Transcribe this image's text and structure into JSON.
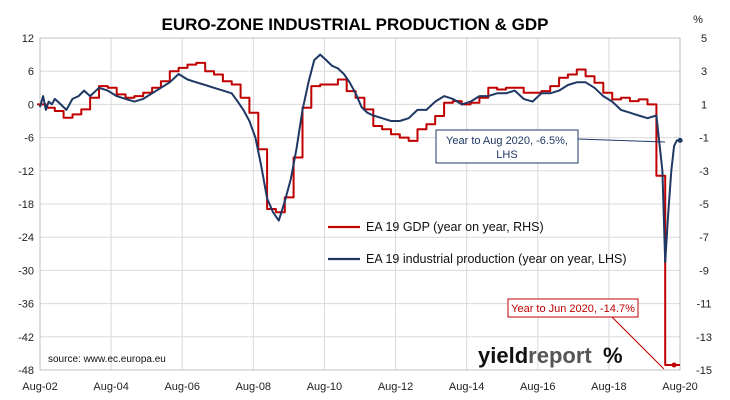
{
  "chart_data": {
    "type": "line",
    "title": "EURO-ZONE INDUSTRIAL PRODUCTION & GDP",
    "right_axis_unit": "%",
    "x_tick_labels": [
      "Aug-02",
      "Aug-04",
      "Aug-06",
      "Aug-08",
      "Aug-10",
      "Aug-12",
      "Aug-14",
      "Aug-16",
      "Aug-18",
      "Aug-20"
    ],
    "x_range": [
      2002.583,
      2020.667
    ],
    "left_axis": {
      "ylim": [
        -48,
        12
      ],
      "ticks": [
        12,
        6,
        0,
        -6,
        -12,
        -18,
        -24,
        -30,
        -36,
        -42,
        -48
      ]
    },
    "right_axis": {
      "ylim": [
        -15,
        5
      ],
      "ticks": [
        5,
        3,
        1,
        -1,
        -3,
        -5,
        -7,
        -9,
        -11,
        -13,
        -15
      ]
    },
    "grid": true,
    "legend_position": "center",
    "series": [
      {
        "name": "EA 19 GDP (year on year, RHS)",
        "axis": "right",
        "color": "#c00000",
        "step": true,
        "x": [
          2002.5,
          2002.75,
          2003.0,
          2003.25,
          2003.5,
          2003.75,
          2004.0,
          2004.25,
          2004.5,
          2004.75,
          2005.0,
          2005.25,
          2005.5,
          2005.75,
          2006.0,
          2006.25,
          2006.5,
          2006.75,
          2007.0,
          2007.25,
          2007.5,
          2007.75,
          2008.0,
          2008.25,
          2008.5,
          2008.75,
          2009.0,
          2009.25,
          2009.5,
          2009.75,
          2010.0,
          2010.25,
          2010.5,
          2010.75,
          2011.0,
          2011.25,
          2011.5,
          2011.75,
          2012.0,
          2012.25,
          2012.5,
          2012.75,
          2013.0,
          2013.25,
          2013.5,
          2013.75,
          2014.0,
          2014.25,
          2014.5,
          2014.75,
          2015.0,
          2015.25,
          2015.5,
          2015.75,
          2016.0,
          2016.25,
          2016.5,
          2016.75,
          2017.0,
          2017.25,
          2017.5,
          2017.75,
          2018.0,
          2018.25,
          2018.5,
          2018.75,
          2019.0,
          2019.25,
          2019.5,
          2019.75,
          2020.0,
          2020.25,
          2020.5
        ],
        "values": [
          1.0,
          0.8,
          0.6,
          0.2,
          0.4,
          0.7,
          1.4,
          2.1,
          2.0,
          1.6,
          1.4,
          1.5,
          1.7,
          2.0,
          2.4,
          3.0,
          3.2,
          3.4,
          3.5,
          3.0,
          2.8,
          2.4,
          2.2,
          1.4,
          0.5,
          -1.7,
          -5.3,
          -5.5,
          -4.6,
          -2.2,
          0.8,
          2.1,
          2.2,
          2.2,
          2.5,
          1.8,
          1.4,
          0.7,
          -0.3,
          -0.5,
          -0.8,
          -1.0,
          -1.2,
          -0.5,
          -0.2,
          0.3,
          1.1,
          1.2,
          1.0,
          1.1,
          1.4,
          2.0,
          1.9,
          2.0,
          2.0,
          1.7,
          1.7,
          1.8,
          2.1,
          2.6,
          2.8,
          3.1,
          2.7,
          2.3,
          1.7,
          1.3,
          1.4,
          1.2,
          1.3,
          1.0,
          -3.3,
          -14.7,
          -14.7
        ]
      },
      {
        "name": "EA 19 industrial production (year on year, LHS)",
        "axis": "left",
        "color": "#1f3864",
        "step": false,
        "x": [
          2002.58,
          2002.67,
          2002.75,
          2002.83,
          2002.92,
          2003.0,
          2003.17,
          2003.33,
          2003.5,
          2003.67,
          2003.83,
          2004.0,
          2004.25,
          2004.5,
          2004.75,
          2005.0,
          2005.25,
          2005.5,
          2005.75,
          2006.0,
          2006.25,
          2006.5,
          2006.75,
          2007.0,
          2007.25,
          2007.5,
          2007.75,
          2008.0,
          2008.17,
          2008.33,
          2008.5,
          2008.67,
          2008.83,
          2009.0,
          2009.17,
          2009.33,
          2009.5,
          2009.67,
          2009.83,
          2010.0,
          2010.17,
          2010.33,
          2010.5,
          2010.67,
          2010.83,
          2011.0,
          2011.17,
          2011.33,
          2011.5,
          2011.67,
          2011.83,
          2012.0,
          2012.25,
          2012.5,
          2012.75,
          2013.0,
          2013.25,
          2013.5,
          2013.75,
          2014.0,
          2014.25,
          2014.5,
          2014.75,
          2015.0,
          2015.25,
          2015.5,
          2015.75,
          2016.0,
          2016.25,
          2016.5,
          2016.75,
          2017.0,
          2017.25,
          2017.5,
          2017.75,
          2018.0,
          2018.25,
          2018.5,
          2018.75,
          2019.0,
          2019.25,
          2019.5,
          2019.75,
          2020.0,
          2020.17,
          2020.25,
          2020.33,
          2020.42,
          2020.5,
          2020.58,
          2020.67
        ],
        "values": [
          -0.5,
          1.5,
          -1.0,
          0.5,
          0.0,
          1.0,
          0.0,
          -1.0,
          1.0,
          1.5,
          2.5,
          1.5,
          3.0,
          2.5,
          1.5,
          1.0,
          0.5,
          1.0,
          2.0,
          3.0,
          4.0,
          5.5,
          4.5,
          4.0,
          3.5,
          3.0,
          2.5,
          2.0,
          0.5,
          -1.0,
          -3.0,
          -6.0,
          -11.0,
          -17.0,
          -19.5,
          -21.0,
          -17.5,
          -13.5,
          -8.0,
          -1.0,
          4.0,
          8.0,
          9.0,
          8.0,
          7.0,
          6.5,
          5.5,
          4.0,
          2.0,
          -0.5,
          -1.5,
          -2.0,
          -2.5,
          -3.0,
          -3.0,
          -2.5,
          -1.0,
          -1.0,
          0.5,
          1.5,
          1.0,
          0.0,
          0.5,
          1.5,
          1.5,
          2.0,
          2.0,
          2.5,
          1.0,
          0.5,
          2.0,
          2.0,
          2.5,
          3.5,
          4.0,
          4.0,
          3.0,
          1.5,
          0.5,
          -1.0,
          -1.5,
          -2.0,
          -2.5,
          -2.0,
          -12.0,
          -28.5,
          -20.0,
          -12.0,
          -7.5,
          -6.5,
          -6.5
        ]
      }
    ],
    "annotations": [
      {
        "text": "Year to Aug 2020, -6.5%, LHS",
        "lines": [
          "Year to Aug 2020, -6.5%,",
          "LHS"
        ],
        "color": "#1f3864",
        "points_to": {
          "x": 2020.67,
          "y": -6.5,
          "axis": "left"
        }
      },
      {
        "text": "Year to Jun 2020, -14.7%",
        "color": "#c00000",
        "points_to": {
          "x": 2020.5,
          "y": -14.7,
          "axis": "right"
        }
      }
    ],
    "source": "source: www.ec.europa.eu",
    "logo": {
      "word1": "yield",
      "word2": "report",
      "symbol": "%"
    }
  }
}
